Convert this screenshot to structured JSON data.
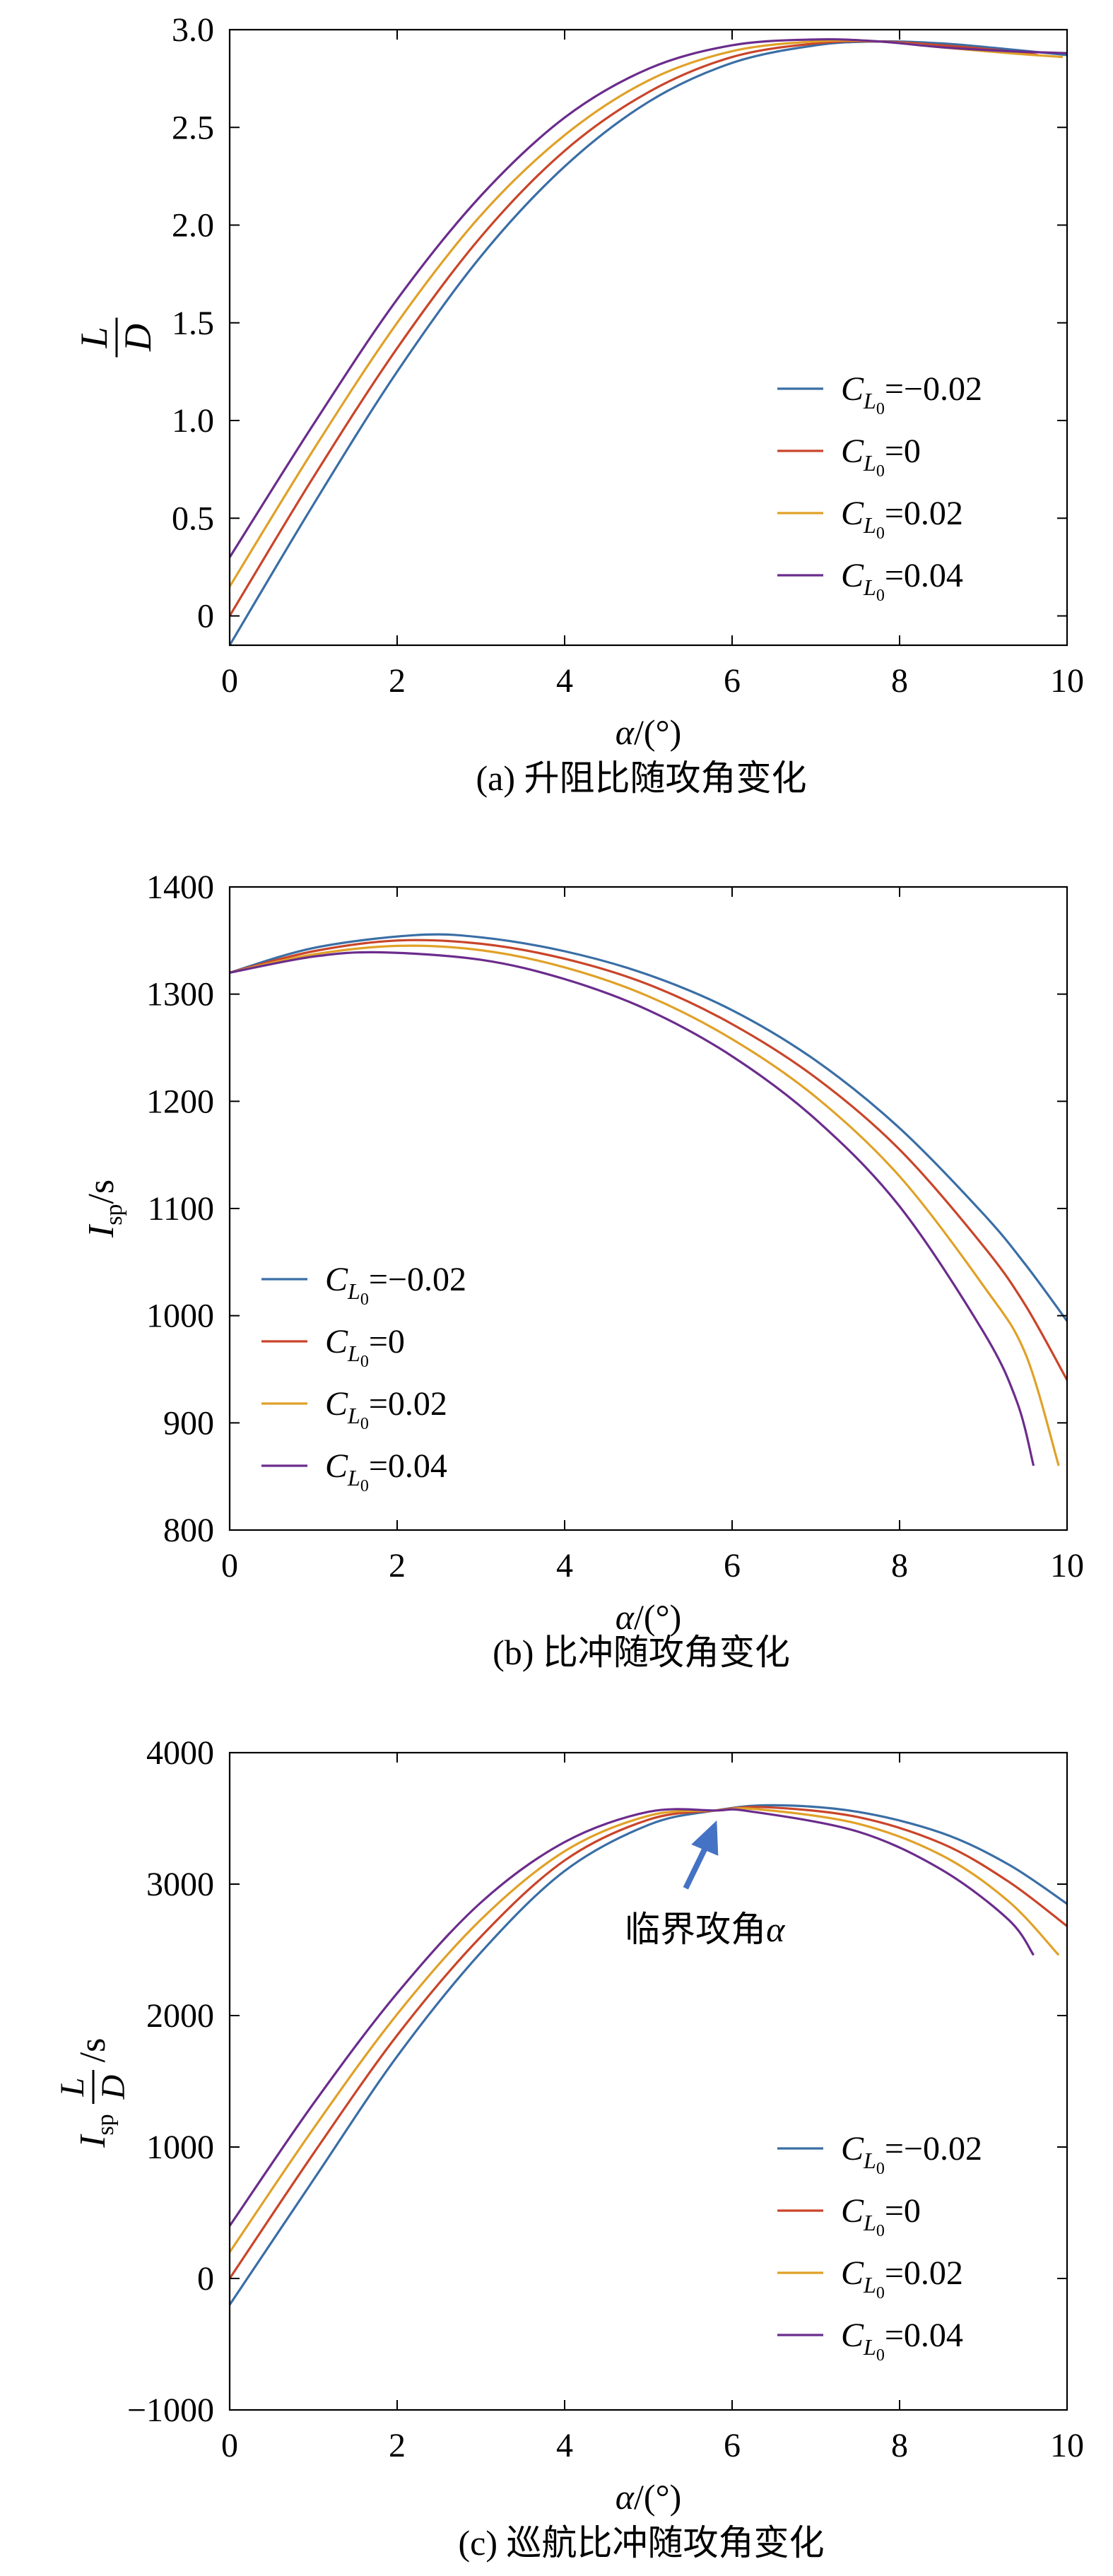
{
  "colors": {
    "series": [
      "#3a6ea5",
      "#c9452a",
      "#e0a128",
      "#6b2c8c"
    ],
    "axis": "#000000",
    "arrow": "#4472c4"
  },
  "legend_labels": {
    "prefix": "C",
    "sub": "L",
    "subsub": "0",
    "values": [
      "=−0.02",
      "=0",
      "=0.02",
      "=0.04"
    ]
  },
  "chart_data": [
    {
      "type": "line",
      "caption": "(a) 升阻比随攻角变化",
      "xlabel": "α/(°)",
      "ylabel": "L/D",
      "xlim": [
        0,
        10
      ],
      "ylim": [
        -0.15,
        3.0
      ],
      "xticks": [
        0,
        2,
        4,
        6,
        8,
        10
      ],
      "yticks": [
        0,
        0.5,
        1.0,
        1.5,
        2.0,
        2.5,
        3.0
      ],
      "ytick_labels": [
        "0",
        "0.5",
        "1.0",
        "1.5",
        "2.0",
        "2.5",
        "3.0"
      ],
      "legend_position": "lower-right",
      "series": [
        {
          "name": "CL0=−0.02",
          "x": [
            0,
            1,
            2,
            3,
            4,
            5,
            6,
            7,
            7.75,
            8.5,
            9.3,
            10
          ],
          "y": [
            -0.15,
            0.57,
            1.25,
            1.84,
            2.3,
            2.63,
            2.83,
            2.92,
            2.94,
            2.93,
            2.9,
            2.87
          ]
        },
        {
          "name": "CL0=0",
          "x": [
            0,
            1,
            2,
            3,
            4,
            5,
            6,
            7,
            7.75,
            8.5,
            9.3,
            9.65
          ],
          "y": [
            0,
            0.71,
            1.37,
            1.94,
            2.38,
            2.68,
            2.86,
            2.93,
            2.94,
            2.92,
            2.89,
            2.87
          ]
        },
        {
          "name": "CL0=0.02",
          "x": [
            0,
            1,
            2,
            3,
            4,
            5,
            6,
            7,
            7.75,
            8.5,
            9.3,
            9.95
          ],
          "y": [
            0.15,
            0.85,
            1.5,
            2.05,
            2.46,
            2.74,
            2.89,
            2.94,
            2.94,
            2.91,
            2.88,
            2.86
          ]
        },
        {
          "name": "CL0=0.04",
          "x": [
            0,
            1,
            2,
            3,
            4,
            5,
            6,
            7,
            7.75,
            8.5,
            9.3,
            10
          ],
          "y": [
            0.3,
            0.98,
            1.62,
            2.15,
            2.55,
            2.8,
            2.92,
            2.95,
            2.94,
            2.91,
            2.89,
            2.88
          ]
        }
      ]
    },
    {
      "type": "line",
      "caption": "(b) 比冲随攻角变化",
      "xlabel": "α/(°)",
      "ylabel": "Isp/s",
      "xlim": [
        0,
        10
      ],
      "ylim": [
        800,
        1400
      ],
      "xticks": [
        0,
        2,
        4,
        6,
        8,
        10
      ],
      "yticks": [
        800,
        900,
        1000,
        1100,
        1200,
        1300,
        1400
      ],
      "ytick_labels": [
        "800",
        "900",
        "1000",
        "1100",
        "1200",
        "1300",
        "1400"
      ],
      "legend_position": "lower-left",
      "series": [
        {
          "name": "CL0=−0.02",
          "x": [
            0,
            1,
            2.2,
            3,
            4,
            5,
            6,
            7,
            8,
            9,
            9.5,
            10
          ],
          "y": [
            1320,
            1343,
            1355,
            1353,
            1340,
            1318,
            1285,
            1238,
            1175,
            1095,
            1048,
            995
          ]
        },
        {
          "name": "CL0=0",
          "x": [
            0,
            1,
            2,
            3,
            4,
            5,
            6,
            7,
            8,
            9,
            9.5,
            10
          ],
          "y": [
            1320,
            1340,
            1350,
            1347,
            1333,
            1309,
            1272,
            1222,
            1155,
            1065,
            1010,
            940
          ]
        },
        {
          "name": "CL0=0.02",
          "x": [
            0,
            1,
            2,
            3,
            4,
            5,
            6,
            7,
            8,
            9,
            9.5,
            9.9
          ],
          "y": [
            1320,
            1337,
            1345,
            1341,
            1325,
            1298,
            1258,
            1204,
            1130,
            1028,
            965,
            860
          ]
        },
        {
          "name": "CL0=0.04",
          "x": [
            0,
            1,
            1.8,
            3,
            4,
            5,
            6,
            7,
            8,
            9,
            9.4,
            9.6
          ],
          "y": [
            1320,
            1335,
            1339,
            1332,
            1314,
            1285,
            1242,
            1183,
            1102,
            985,
            920,
            860
          ]
        }
      ]
    },
    {
      "type": "line",
      "caption": "(c) 巡航比冲随攻角变化",
      "xlabel": "α/(°)",
      "ylabel": "Isp·L/D/s",
      "xlim": [
        0,
        10
      ],
      "ylim": [
        -1000,
        4000
      ],
      "xticks": [
        0,
        2,
        4,
        6,
        8,
        10
      ],
      "yticks": [
        -1000,
        0,
        1000,
        2000,
        3000,
        4000
      ],
      "ytick_labels": [
        "−1000",
        "0",
        "1000",
        "2000",
        "3000",
        "4000"
      ],
      "legend_position": "lower-right",
      "annotation": {
        "text": "临界攻角",
        "symbol": "α",
        "x": 5.8,
        "y": 3560
      },
      "series": [
        {
          "name": "CL0=−0.02",
          "x": [
            0,
            1,
            2,
            3,
            4,
            5,
            5.8,
            6.5,
            7.5,
            8.5,
            9.3,
            10
          ],
          "y": [
            -200,
            750,
            1690,
            2480,
            3100,
            3450,
            3560,
            3600,
            3550,
            3390,
            3150,
            2850
          ]
        },
        {
          "name": "CL0=0",
          "x": [
            0,
            1,
            2,
            3,
            4,
            5,
            5.8,
            6.4,
            7.5,
            8.5,
            9.3,
            10
          ],
          "y": [
            0,
            950,
            1850,
            2600,
            3180,
            3490,
            3560,
            3585,
            3510,
            3310,
            3020,
            2680
          ]
        },
        {
          "name": "CL0=0.02",
          "x": [
            0,
            1,
            2,
            3,
            4,
            5,
            5.8,
            6.3,
            7.5,
            8.5,
            9.3,
            9.9
          ],
          "y": [
            200,
            1140,
            2010,
            2730,
            3250,
            3520,
            3560,
            3570,
            3460,
            3220,
            2870,
            2460
          ]
        },
        {
          "name": "CL0=0.04",
          "x": [
            0,
            1,
            2,
            3,
            4,
            5,
            5.8,
            6.2,
            7.5,
            8.5,
            9.3,
            9.6
          ],
          "y": [
            400,
            1330,
            2170,
            2860,
            3320,
            3550,
            3560,
            3555,
            3400,
            3110,
            2730,
            2460
          ]
        }
      ]
    }
  ]
}
